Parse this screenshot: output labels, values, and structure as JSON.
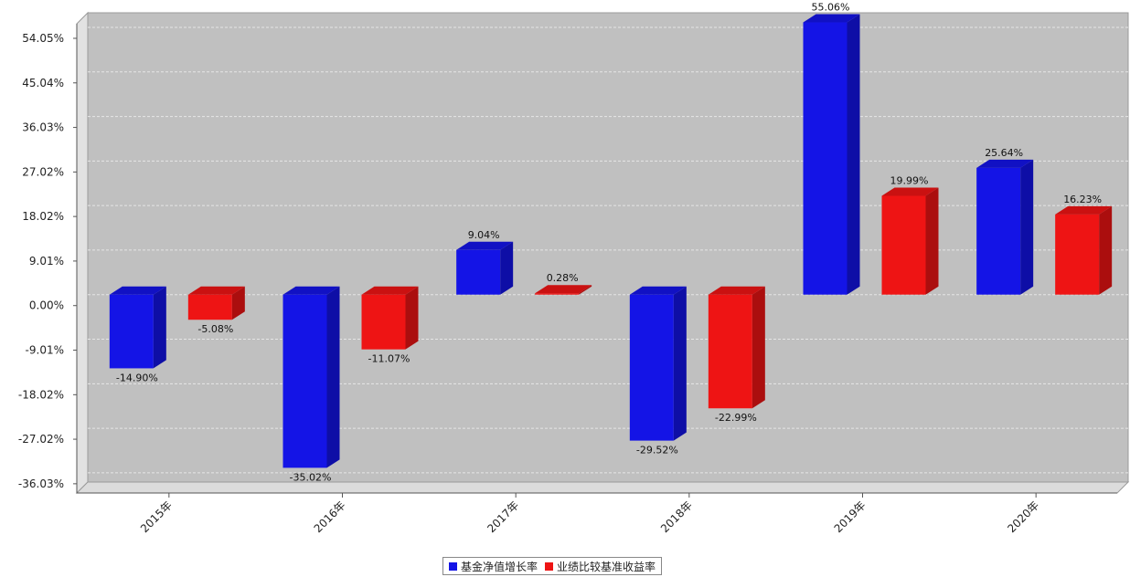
{
  "chart_data": {
    "type": "bar",
    "categories": [
      "2015年",
      "2016年",
      "2017年",
      "2018年",
      "2019年",
      "2020年"
    ],
    "series": [
      {
        "name": "基金净值增长率",
        "color": "#1414e6",
        "values": [
          -14.9,
          -35.02,
          9.04,
          -29.52,
          55.06,
          25.64
        ],
        "labels": [
          "-14.90%",
          "-35.02%",
          "9.04%",
          "-29.52%",
          "55.06%",
          "25.64%"
        ]
      },
      {
        "name": "业绩比较基准收益率",
        "color": "#ee1414",
        "values": [
          -5.08,
          -11.07,
          0.28,
          -22.99,
          19.99,
          16.23
        ],
        "labels": [
          "-5.08%",
          "-11.07%",
          "0.28%",
          "-22.99%",
          "19.99%",
          "16.23%"
        ]
      }
    ],
    "yticks": [
      54.05,
      45.04,
      36.03,
      27.02,
      18.02,
      9.01,
      0.0,
      -9.01,
      -18.02,
      -27.02,
      -36.03
    ],
    "ytick_labels": [
      "54.05%",
      "45.04%",
      "36.03%",
      "27.02%",
      "18.02%",
      "9.01%",
      "0.00%",
      "-9.01%",
      "-18.02%",
      "-27.02%",
      "-36.03%"
    ],
    "ylim": [
      -37.9,
      57.0
    ],
    "grid": true,
    "legend_position": "bottom-center",
    "style": "3d-bar"
  }
}
